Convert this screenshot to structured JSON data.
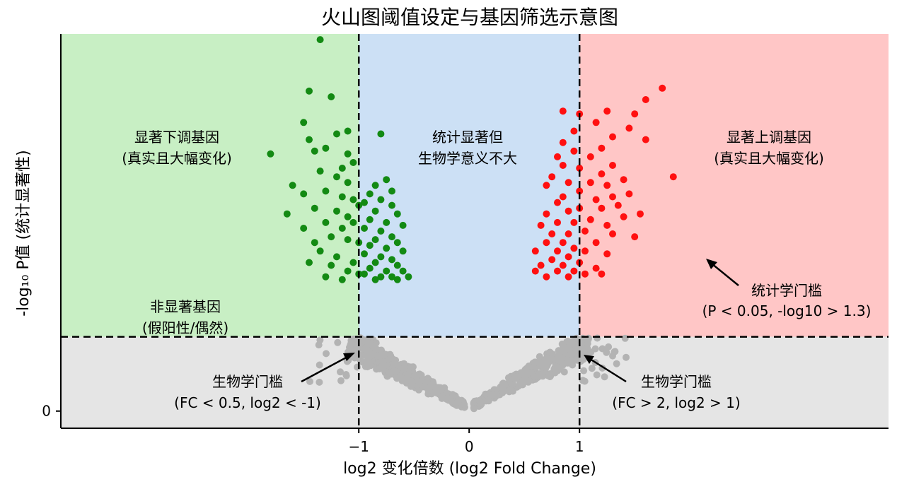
{
  "chart_data": {
    "type": "scatter",
    "title": "火山图阈值设定与基因筛选示意图",
    "xlabel": "log2 变化倍数 (log2 Fold Change)",
    "ylabel": "-log₁₀ P值 (统计显著性)",
    "x_ticks": [
      {
        "value": -1,
        "label": "−1"
      },
      {
        "value": 0,
        "label": "0"
      },
      {
        "value": 1,
        "label": "1"
      }
    ],
    "y_ticks": [
      {
        "value": 0,
        "label": "0"
      }
    ],
    "xlim": [
      -3.7,
      3.8
    ],
    "ylim": [
      -0.3,
      6.6
    ],
    "thresholds": {
      "log2fc_low": -1,
      "log2fc_high": 1,
      "neg_log10_p": 1.3
    },
    "region_labels": {
      "down": [
        "显著下调基因",
        "(真实且大幅变化)"
      ],
      "middle": [
        "统计显著但",
        "生物学意义不大"
      ],
      "up": [
        "显著上调基因",
        "(真实且大幅变化)"
      ],
      "nonsig": [
        "非显著基因",
        "(假阳性/偶然)"
      ]
    },
    "annotations": {
      "p_threshold": [
        "统计学门槛",
        "(P < 0.05, -log10 > 1.3)"
      ],
      "fc_low": [
        "生物学门槛",
        "(FC < 0.5, log2 < -1)"
      ],
      "fc_high": [
        "生物学门槛",
        "(FC > 2, log2 > 1)"
      ]
    },
    "colors": {
      "down_bg": "#c8efc4",
      "middle_bg": "#cce0f5",
      "up_bg": "#ffc6c6",
      "nonsig_bg": "#e5e5e5",
      "down_points": "#138a13",
      "up_points": "#ff1010",
      "nonsig_points": "#b3b3b3",
      "middle_points": "#138a13"
    },
    "series": [
      {
        "name": "down",
        "color": "#138a13",
        "points": [
          [
            -1.35,
            6.5
          ],
          [
            -1.45,
            5.6
          ],
          [
            -1.25,
            5.5
          ],
          [
            -1.5,
            5.05
          ],
          [
            -1.2,
            4.85
          ],
          [
            -1.1,
            4.9
          ],
          [
            -1.8,
            4.5
          ],
          [
            -1.4,
            4.55
          ],
          [
            -1.45,
            4.75
          ],
          [
            -1.3,
            4.6
          ],
          [
            -1.1,
            4.5
          ],
          [
            -1.05,
            4.35
          ],
          [
            -1.15,
            4.25
          ],
          [
            -1.35,
            4.2
          ],
          [
            -1.2,
            4.1
          ],
          [
            -1.1,
            4.0
          ],
          [
            -1.6,
            3.95
          ],
          [
            -1.5,
            3.8
          ],
          [
            -1.3,
            3.85
          ],
          [
            -1.15,
            3.75
          ],
          [
            -1.05,
            3.7
          ],
          [
            -1.0,
            3.6
          ],
          [
            -1.4,
            3.55
          ],
          [
            -1.2,
            3.5
          ],
          [
            -1.1,
            3.4
          ],
          [
            -1.05,
            3.3
          ],
          [
            -1.65,
            3.45
          ],
          [
            -1.3,
            3.3
          ],
          [
            -1.15,
            3.2
          ],
          [
            -1.5,
            3.2
          ],
          [
            -1.25,
            3.05
          ],
          [
            -1.1,
            3.0
          ],
          [
            -1.4,
            2.95
          ],
          [
            -1.0,
            2.95
          ],
          [
            -1.35,
            2.8
          ],
          [
            -1.2,
            2.7
          ],
          [
            -1.05,
            2.6
          ],
          [
            -1.45,
            2.6
          ],
          [
            -1.25,
            2.55
          ],
          [
            -1.1,
            2.45
          ],
          [
            -1.0,
            2.4
          ],
          [
            -1.3,
            2.35
          ],
          [
            -1.15,
            2.3
          ]
        ]
      },
      {
        "name": "middle",
        "color": "#138a13",
        "points": [
          [
            -0.8,
            4.85
          ],
          [
            -0.75,
            4.05
          ],
          [
            -0.85,
            3.95
          ],
          [
            -0.7,
            3.85
          ],
          [
            -0.9,
            3.8
          ],
          [
            -0.8,
            3.7
          ],
          [
            -0.95,
            3.65
          ],
          [
            -0.7,
            3.6
          ],
          [
            -0.85,
            3.5
          ],
          [
            -0.65,
            3.45
          ],
          [
            -0.9,
            3.35
          ],
          [
            -0.75,
            3.3
          ],
          [
            -0.6,
            3.25
          ],
          [
            -0.95,
            3.2
          ],
          [
            -0.8,
            3.15
          ],
          [
            -0.7,
            3.05
          ],
          [
            -0.85,
            3.0
          ],
          [
            -0.65,
            2.95
          ],
          [
            -0.9,
            2.9
          ],
          [
            -0.75,
            2.85
          ],
          [
            -0.6,
            2.8
          ],
          [
            -0.95,
            2.75
          ],
          [
            -0.8,
            2.7
          ],
          [
            -0.7,
            2.65
          ],
          [
            -0.85,
            2.6
          ],
          [
            -0.65,
            2.55
          ],
          [
            -0.9,
            2.5
          ],
          [
            -0.75,
            2.45
          ],
          [
            -0.6,
            2.45
          ],
          [
            -0.95,
            2.4
          ],
          [
            -0.8,
            2.35
          ],
          [
            -0.7,
            2.35
          ],
          [
            -0.55,
            2.35
          ],
          [
            -0.85,
            2.3
          ],
          [
            -0.65,
            2.3
          ]
        ]
      },
      {
        "name": "up",
        "color": "#ff1010",
        "points": [
          [
            1.75,
            5.65
          ],
          [
            1.6,
            5.45
          ],
          [
            1.25,
            5.25
          ],
          [
            1.5,
            5.2
          ],
          [
            1.45,
            4.95
          ],
          [
            1.15,
            5.05
          ],
          [
            1.0,
            5.2
          ],
          [
            0.85,
            5.25
          ],
          [
            1.6,
            4.75
          ],
          [
            1.3,
            4.8
          ],
          [
            0.95,
            4.9
          ],
          [
            0.85,
            4.7
          ],
          [
            1.2,
            4.6
          ],
          [
            0.95,
            4.55
          ],
          [
            1.1,
            4.45
          ],
          [
            0.8,
            4.45
          ],
          [
            1.3,
            4.3
          ],
          [
            1.2,
            4.15
          ],
          [
            1.0,
            4.25
          ],
          [
            0.85,
            4.3
          ],
          [
            1.85,
            4.1
          ],
          [
            0.75,
            4.1
          ],
          [
            1.4,
            4.05
          ],
          [
            1.1,
            4.0
          ],
          [
            1.25,
            3.95
          ],
          [
            0.9,
            4.0
          ],
          [
            0.7,
            3.95
          ],
          [
            1.0,
            3.85
          ],
          [
            1.45,
            3.8
          ],
          [
            1.3,
            3.75
          ],
          [
            0.85,
            3.75
          ],
          [
            1.15,
            3.7
          ],
          [
            0.8,
            3.65
          ],
          [
            1.35,
            3.6
          ],
          [
            1.0,
            3.55
          ],
          [
            1.2,
            3.55
          ],
          [
            0.9,
            3.5
          ],
          [
            0.7,
            3.45
          ],
          [
            1.55,
            3.45
          ],
          [
            1.4,
            3.4
          ],
          [
            1.1,
            3.35
          ],
          [
            0.95,
            3.3
          ],
          [
            0.8,
            3.3
          ],
          [
            1.25,
            3.25
          ],
          [
            0.65,
            3.25
          ],
          [
            1.05,
            3.15
          ],
          [
            0.9,
            3.1
          ],
          [
            1.3,
            3.1
          ],
          [
            0.75,
            3.1
          ],
          [
            1.5,
            3.05
          ],
          [
            0.85,
            2.95
          ],
          [
            1.15,
            2.95
          ],
          [
            0.7,
            2.95
          ],
          [
            0.95,
            2.85
          ],
          [
            1.05,
            2.8
          ],
          [
            0.8,
            2.8
          ],
          [
            0.6,
            2.8
          ],
          [
            1.25,
            2.75
          ],
          [
            0.9,
            2.7
          ],
          [
            0.75,
            2.65
          ],
          [
            1.0,
            2.6
          ],
          [
            0.85,
            2.55
          ],
          [
            0.65,
            2.55
          ],
          [
            1.15,
            2.5
          ],
          [
            0.95,
            2.45
          ],
          [
            0.8,
            2.45
          ],
          [
            0.6,
            2.45
          ],
          [
            1.2,
            2.4
          ],
          [
            1.05,
            2.4
          ],
          [
            0.9,
            2.35
          ],
          [
            0.7,
            2.35
          ]
        ]
      }
    ],
    "nonsig_note": "approx. 700 grey points forming a V shape between x = -1.5 and 1.4, y = 0 to 1.3"
  }
}
